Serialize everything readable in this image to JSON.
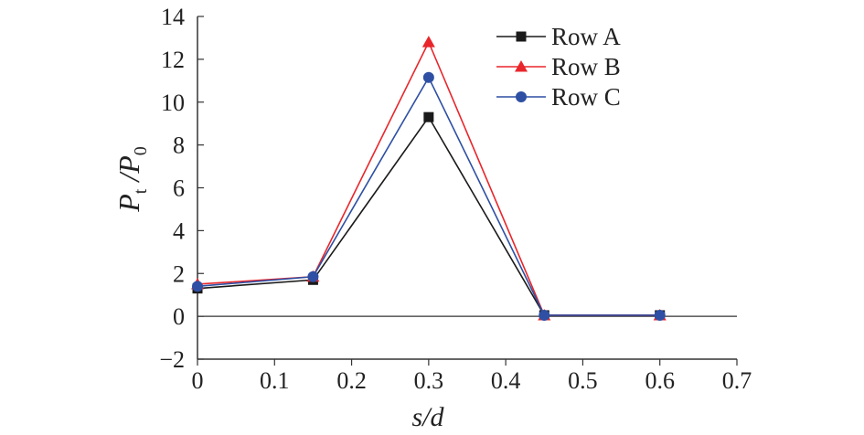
{
  "chart_data": {
    "type": "line",
    "title": "",
    "xlabel": {
      "main": "s/d"
    },
    "ylabel": {
      "main": "P",
      "sub1": "t",
      "sep": " /P",
      "sub2": "0"
    },
    "xlim": [
      0,
      0.7
    ],
    "ylim": [
      -2,
      14
    ],
    "x": [
      0,
      0.15,
      0.3,
      0.45,
      0.6
    ],
    "x_ticks": [
      "0",
      "0.1",
      "0.2",
      "0.3",
      "0.4",
      "0.5",
      "0.6",
      "0.7"
    ],
    "y_ticks": [
      "−2",
      "0",
      "2",
      "4",
      "6",
      "8",
      "10",
      "12",
      "14"
    ],
    "grid": false,
    "legend_position": "top-right",
    "series": [
      {
        "name": "Row A",
        "color": "#1a1a1a",
        "marker": "square",
        "values": [
          1.3,
          1.7,
          9.3,
          0.05,
          0.05
        ]
      },
      {
        "name": "Row B",
        "color": "#e8262b",
        "marker": "triangle",
        "values": [
          1.5,
          1.85,
          12.8,
          0.05,
          0.05
        ]
      },
      {
        "name": "Row C",
        "color": "#2e4fa3",
        "marker": "circle",
        "values": [
          1.4,
          1.85,
          11.15,
          0.05,
          0.05
        ]
      }
    ]
  }
}
